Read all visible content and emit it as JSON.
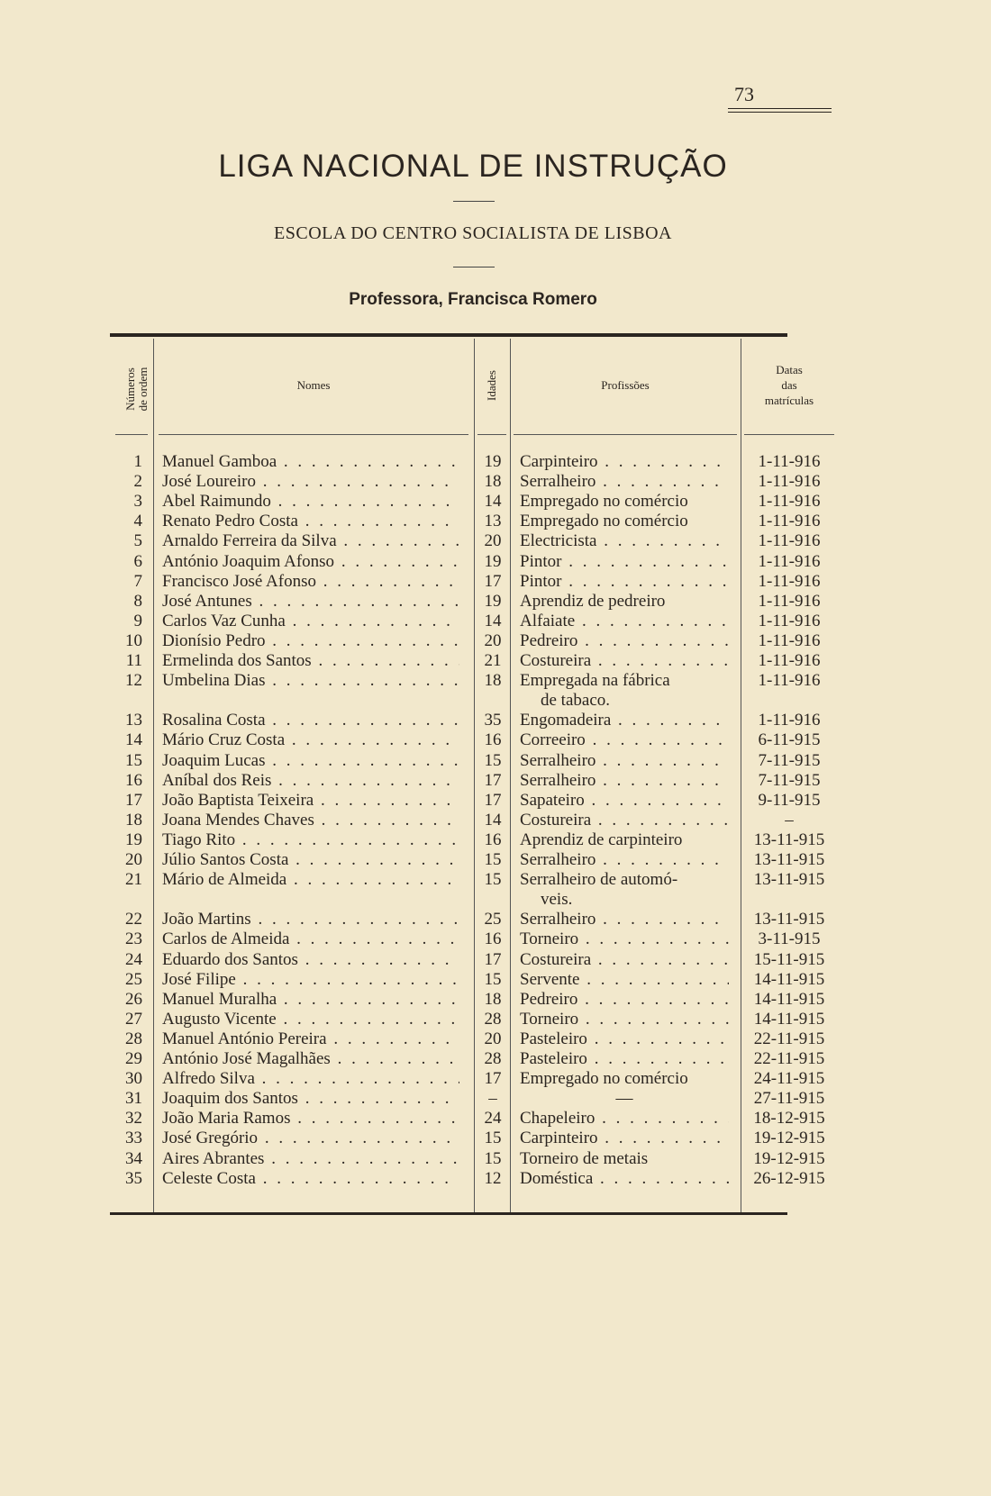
{
  "page_number": "73",
  "title": "LIGA NACIONAL DE INSTRUÇÃO",
  "subtitle": "ESCOLA DO CENTRO SOCIALISTA DE LISBOA",
  "teacher": "Professora, Francisca Romero",
  "table": {
    "headers": {
      "numbers": [
        "Números",
        "de ordem"
      ],
      "names": "Nomes",
      "ages": "Idades",
      "professions": "Profissões",
      "dates": [
        "Datas",
        "das",
        "matrículas"
      ]
    },
    "rows": [
      {
        "num": "1",
        "name": "Manuel Gamboa",
        "age": "19",
        "profession": "Carpinteiro",
        "date": "1-11-916"
      },
      {
        "num": "2",
        "name": "José Loureiro",
        "age": "18",
        "profession": "Serralheiro",
        "date": "1-11-916"
      },
      {
        "num": "3",
        "name": "Abel Raimundo",
        "age": "14",
        "profession": "Empregado no comércio",
        "date": "1-11-916"
      },
      {
        "num": "4",
        "name": "Renato Pedro Costa",
        "age": "13",
        "profession": "Empregado no comércio",
        "date": "1-11-916"
      },
      {
        "num": "5",
        "name": "Arnaldo Ferreira da Silva",
        "age": "20",
        "profession": "Electricista",
        "date": "1-11-916"
      },
      {
        "num": "6",
        "name": "António Joaquim Afonso",
        "age": "19",
        "profession": "Pintor",
        "date": "1-11-916"
      },
      {
        "num": "7",
        "name": "Francisco José Afonso",
        "age": "17",
        "profession": "Pintor",
        "date": "1-11-916"
      },
      {
        "num": "8",
        "name": "José Antunes",
        "age": "19",
        "profession": "Aprendiz de pedreiro",
        "date": "1-11-916"
      },
      {
        "num": "9",
        "name": "Carlos Vaz Cunha",
        "age": "14",
        "profession": "Alfaiate",
        "date": "1-11-916"
      },
      {
        "num": "10",
        "name": "Dionísio Pedro",
        "age": "20",
        "profession": "Pedreiro",
        "date": "1-11-916"
      },
      {
        "num": "11",
        "name": "Ermelinda dos Santos",
        "age": "21",
        "profession": "Costureira",
        "date": "1-11-916"
      },
      {
        "num": "12",
        "name": "Umbelina Dias",
        "age": "18",
        "profession": "Empregada na fábrica",
        "profession_cont": "de tabaco.",
        "date": "1-11-916"
      },
      {
        "num": "13",
        "name": "Rosalina Costa",
        "age": "35",
        "profession": "Engomadeira",
        "date": "1-11-916"
      },
      {
        "num": "14",
        "name": "Mário Cruz Costa",
        "age": "16",
        "profession": "Correeiro",
        "date": "6-11-915"
      },
      {
        "num": "15",
        "name": "Joaquim Lucas",
        "age": "15",
        "profession": "Serralheiro",
        "date": "7-11-915"
      },
      {
        "num": "16",
        "name": "Aníbal dos Reis",
        "age": "17",
        "profession": "Serralheiro",
        "date": "7-11-915"
      },
      {
        "num": "17",
        "name": "João Baptista Teixeira",
        "age": "17",
        "profession": "Sapateiro",
        "date": "9-11-915"
      },
      {
        "num": "18",
        "name": "Joana Mendes Chaves",
        "age": "14",
        "profession": "Costureira",
        "date": "–"
      },
      {
        "num": "19",
        "name": "Tiago Rito",
        "age": "16",
        "profession": "Aprendiz de carpinteiro",
        "date": "13-11-915"
      },
      {
        "num": "20",
        "name": "Júlio Santos Costa",
        "age": "15",
        "profession": "Serralheiro",
        "date": "13-11-915"
      },
      {
        "num": "21",
        "name": "Mário de Almeida",
        "age": "15",
        "profession": "Serralheiro de automó-",
        "profession_cont": "veis.",
        "date": "13-11-915"
      },
      {
        "num": "22",
        "name": "João Martins",
        "age": "25",
        "profession": "Serralheiro",
        "date": "13-11-915"
      },
      {
        "num": "23",
        "name": "Carlos de Almeida",
        "age": "16",
        "profession": "Torneiro",
        "date": "3-11-915"
      },
      {
        "num": "24",
        "name": "Eduardo dos Santos",
        "age": "17",
        "profession": "Costureira",
        "date": "15-11-915"
      },
      {
        "num": "25",
        "name": "José Filipe",
        "age": "15",
        "profession": "Servente",
        "date": "14-11-915"
      },
      {
        "num": "26",
        "name": "Manuel Muralha",
        "age": "18",
        "profession": "Pedreiro",
        "date": "14-11-915"
      },
      {
        "num": "27",
        "name": "Augusto Vicente",
        "age": "28",
        "profession": "Torneiro",
        "date": "14-11-915"
      },
      {
        "num": "28",
        "name": "Manuel António Pereira",
        "age": "20",
        "profession": "Pasteleiro",
        "date": "22-11-915"
      },
      {
        "num": "29",
        "name": "António José Magalhães",
        "age": "28",
        "profession": "Pasteleiro",
        "date": "22-11-915"
      },
      {
        "num": "30",
        "name": "Alfredo Silva",
        "age": "17",
        "profession": "Empregado no comércio",
        "date": "24-11-915"
      },
      {
        "num": "31",
        "name": "Joaquim dos Santos",
        "age": "–",
        "profession": "—",
        "date": "27-11-915"
      },
      {
        "num": "32",
        "name": "João Maria Ramos",
        "age": "24",
        "profession": "Chapeleiro",
        "date": "18-12-915"
      },
      {
        "num": "33",
        "name": "José Gregório",
        "age": "15",
        "profession": "Carpinteiro",
        "date": "19-12-915"
      },
      {
        "num": "34",
        "name": "Aires Abrantes",
        "age": "15",
        "profession": "Torneiro de metais",
        "date": "19-12-915"
      },
      {
        "num": "35",
        "name": "Celeste Costa",
        "age": "12",
        "profession": "Doméstica",
        "date": "26-12-915"
      }
    ]
  }
}
